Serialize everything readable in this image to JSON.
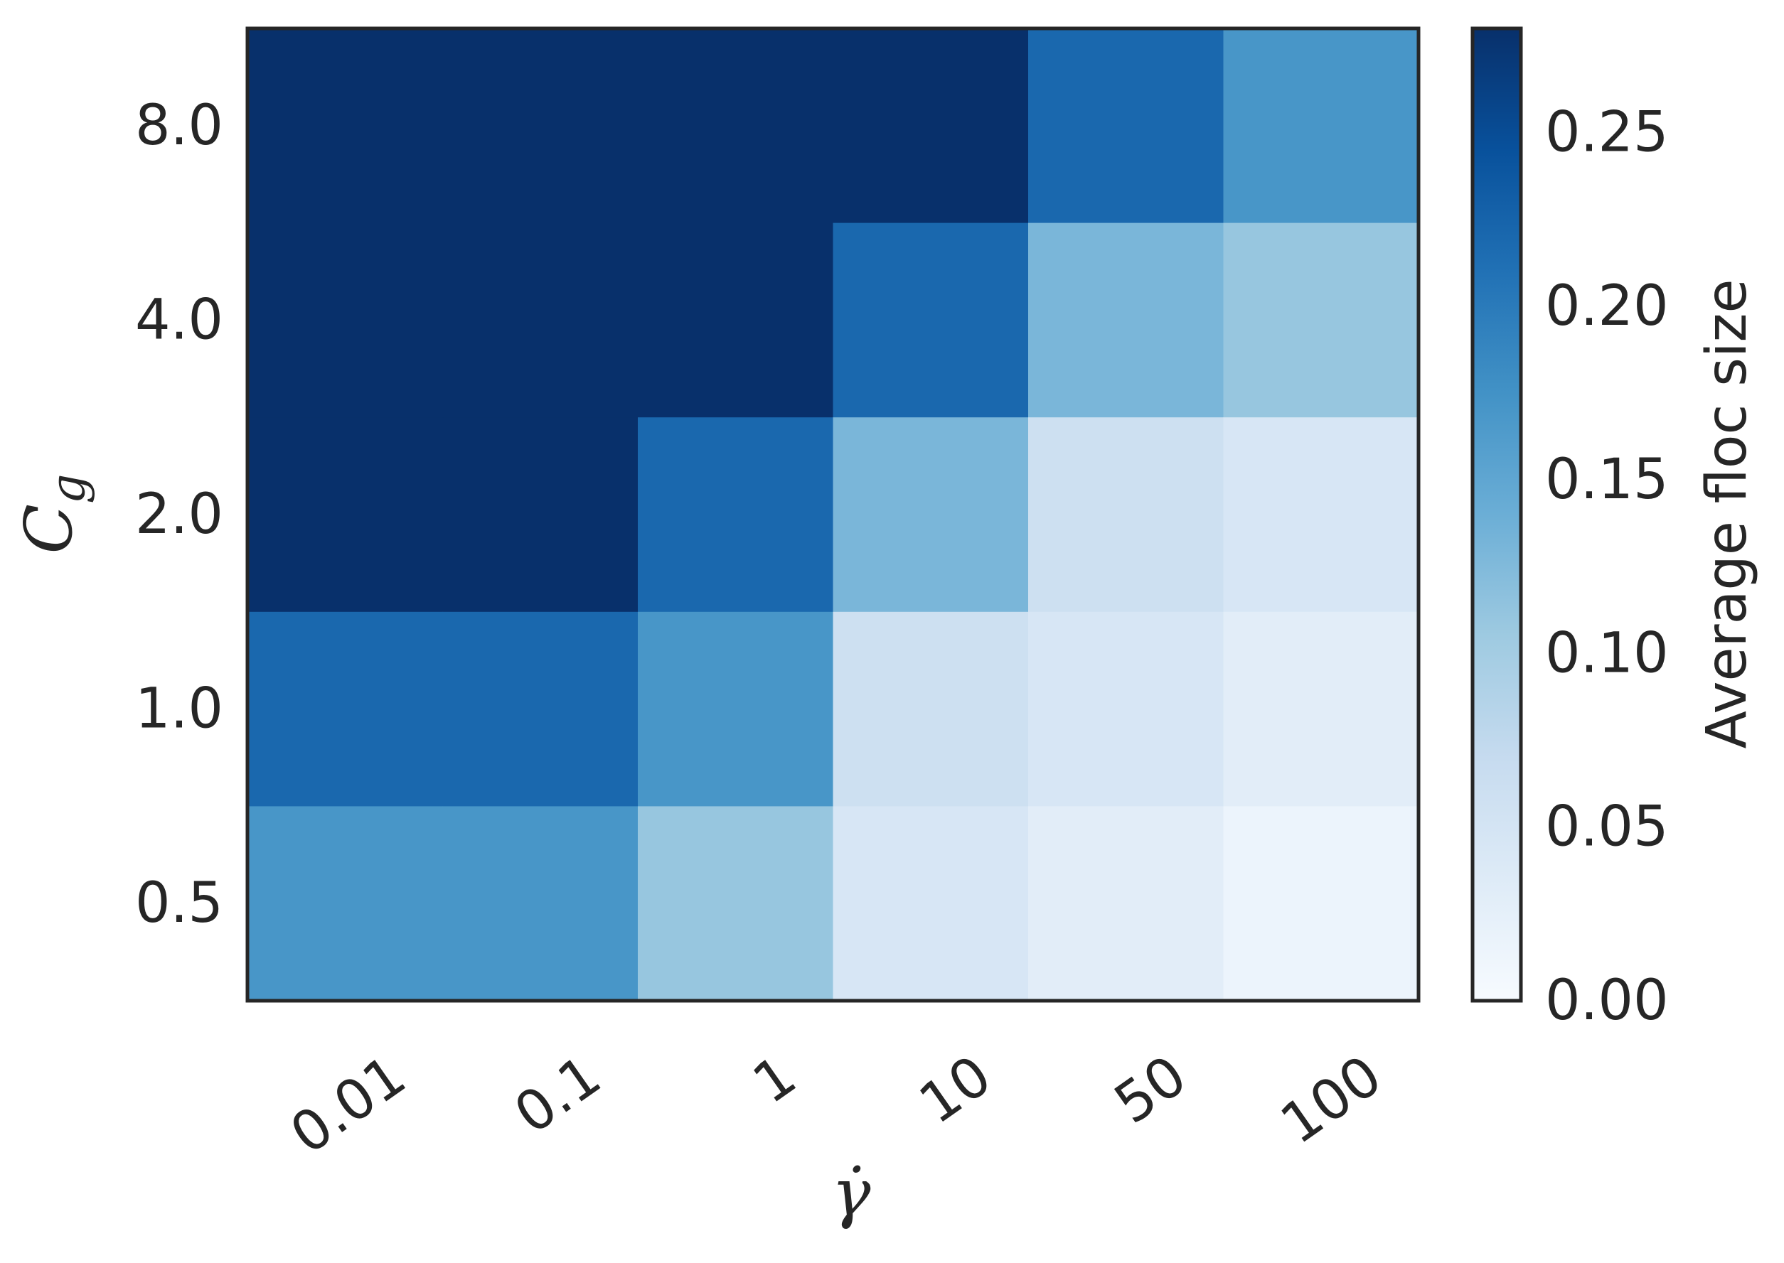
{
  "chart_data": {
    "type": "heatmap",
    "title": "",
    "xlabel": "γ̇",
    "ylabel": "C_g",
    "x_categories": [
      "0.01",
      "0.1",
      "1",
      "10",
      "50",
      "100"
    ],
    "y_categories": [
      "8.0",
      "4.0",
      "2.0",
      "1.0",
      "0.5"
    ],
    "values": [
      [
        0.28,
        0.28,
        0.28,
        0.28,
        0.22,
        0.17
      ],
      [
        0.28,
        0.28,
        0.28,
        0.22,
        0.13,
        0.11
      ],
      [
        0.28,
        0.28,
        0.22,
        0.13,
        0.06,
        0.045
      ],
      [
        0.22,
        0.22,
        0.17,
        0.06,
        0.045,
        0.03
      ],
      [
        0.17,
        0.17,
        0.11,
        0.045,
        0.03,
        0.015
      ]
    ],
    "colorbar": {
      "label": "Average floc size",
      "min": 0.0,
      "max": 0.28,
      "ticks": [
        "0.00",
        "0.05",
        "0.10",
        "0.15",
        "0.20",
        "0.25"
      ],
      "colormap": "Blues",
      "colormap_colors": [
        "#f7fbff",
        "#deebf7",
        "#c6dbef",
        "#9ecae1",
        "#6baed6",
        "#4292c6",
        "#2171b5",
        "#08519c",
        "#08306b"
      ]
    },
    "grid": false,
    "x_tick_rotation_deg": 35,
    "frame_color": "#262626"
  }
}
